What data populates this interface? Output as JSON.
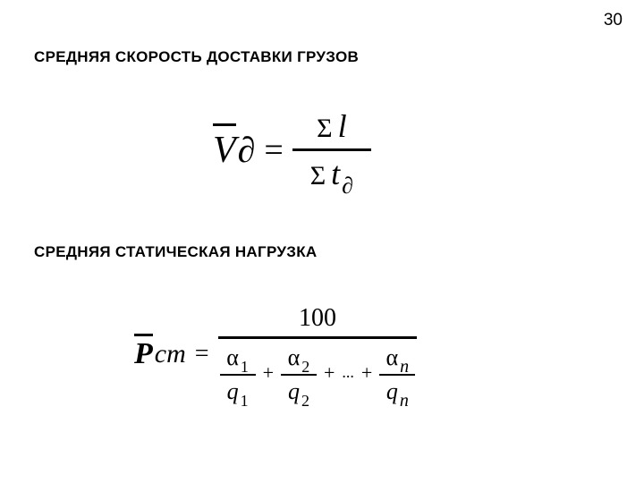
{
  "page_number": "30",
  "heading1": "СРЕДНЯЯ СКОРОСТЬ ДОСТАВКИ ГРУЗОВ",
  "heading2": "СРЕДНЯЯ СТАТИЧЕСКАЯ НАГРУЗКА",
  "formula1": {
    "lhs_var": "V",
    "lhs_sub": "∂",
    "eq": "=",
    "sigma": "Σ",
    "num_var": "l",
    "den_var": "t",
    "den_sub": "∂"
  },
  "formula2": {
    "lhs_var": "P",
    "lhs_suffix": "ст",
    "eq": "=",
    "numerator": "100",
    "alpha": "α",
    "q": "q",
    "sub1": "1",
    "sub2": "2",
    "subn": "n",
    "plus": "+",
    "dots": "..."
  }
}
